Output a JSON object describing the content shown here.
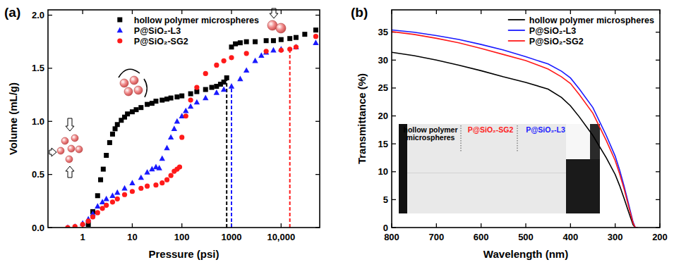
{
  "chart_data": [
    {
      "type": "scatter",
      "title": "(a)",
      "x_label": "Pressure (psi)",
      "y_label": "Volume (mL/g)",
      "log": "x",
      "grid": false,
      "legend": "upper center",
      "xlim": [
        0.2,
        60000
      ],
      "ylim": [
        0,
        2.05
      ],
      "xticks": [
        1,
        10,
        100,
        1000,
        {
          "value": 10000,
          "label": "10,000"
        }
      ],
      "yticks": [
        {
          "value": 0,
          "label": "0.0"
        },
        {
          "value": 0.5,
          "label": "0.5"
        },
        {
          "value": 1,
          "label": "1.0"
        },
        {
          "value": 1.5,
          "label": "1.5"
        },
        {
          "value": 2,
          "label": "2.0"
        }
      ],
      "series": [
        {
          "name": "hollow polymer microspheres",
          "color": "#000000",
          "marker": "square",
          "x": [
            1.3,
            1.6,
            2,
            2.3,
            2.6,
            3,
            3.5,
            4,
            4.5,
            5,
            6,
            7,
            8,
            10,
            12,
            15,
            20,
            25,
            30,
            40,
            50,
            60,
            80,
            100,
            150,
            200,
            300,
            400,
            500,
            600,
            700,
            800,
            1000,
            1200,
            1500,
            2000,
            3000,
            5000,
            7000,
            10000,
            15000,
            20000,
            30000,
            50000
          ],
          "values": [
            0.03,
            0.15,
            0.3,
            0.45,
            0.55,
            0.68,
            0.8,
            0.88,
            0.93,
            0.97,
            1.01,
            1.04,
            1.07,
            1.09,
            1.11,
            1.13,
            1.16,
            1.17,
            1.19,
            1.2,
            1.21,
            1.22,
            1.23,
            1.24,
            1.26,
            1.28,
            1.3,
            1.32,
            1.33,
            1.35,
            1.37,
            1.41,
            1.7,
            1.73,
            1.74,
            1.75,
            1.75,
            1.76,
            1.76,
            1.77,
            1.78,
            1.79,
            1.82,
            1.86
          ]
        },
        {
          "name": "P@SiO₂-L3",
          "color": "#1a1aff",
          "marker": "triangle",
          "x": [
            0.5,
            0.7,
            1,
            1.3,
            1.6,
            2,
            2.5,
            3,
            4,
            5,
            7,
            10,
            15,
            20,
            25,
            30,
            35,
            40,
            50,
            60,
            70,
            80,
            100,
            120,
            150,
            200,
            300,
            500,
            700,
            1000,
            1500,
            2000,
            3000,
            4000,
            5000,
            7000,
            10000,
            20000,
            50000
          ],
          "values": [
            0,
            0.01,
            0.04,
            0.08,
            0.13,
            0.2,
            0.24,
            0.27,
            0.3,
            0.33,
            0.37,
            0.42,
            0.47,
            0.52,
            0.55,
            0.57,
            0.56,
            0.65,
            0.75,
            0.85,
            0.93,
            1.0,
            1.05,
            1.1,
            1.14,
            1.18,
            1.22,
            1.27,
            1.3,
            1.33,
            1.4,
            1.48,
            1.57,
            1.62,
            1.65,
            1.67,
            1.68,
            1.7,
            1.74
          ]
        },
        {
          "name": "P@SiO₂-SG2",
          "color": "#ff1a1a",
          "marker": "circle",
          "x": [
            0.5,
            0.7,
            1,
            1.3,
            1.6,
            2,
            2.5,
            3,
            4,
            5,
            7,
            10,
            15,
            20,
            30,
            40,
            50,
            60,
            70,
            80,
            90,
            100,
            120,
            150,
            200,
            300,
            500,
            700,
            1000,
            2000,
            5000,
            10000,
            15000,
            20000,
            50000
          ],
          "values": [
            0,
            0.01,
            0.03,
            0.06,
            0.1,
            0.14,
            0.18,
            0.21,
            0.24,
            0.27,
            0.31,
            0.34,
            0.37,
            0.39,
            0.4,
            0.42,
            0.45,
            0.49,
            0.53,
            0.55,
            0.57,
            0.85,
            1.05,
            1.2,
            1.32,
            1.45,
            1.53,
            1.57,
            1.6,
            1.64,
            1.66,
            1.67,
            1.68,
            1.7,
            1.8
          ]
        }
      ],
      "reference_lines": [
        {
          "x": 800,
          "y": 1.41,
          "color": "#000000",
          "line_style": "dashed"
        },
        {
          "x": 1000,
          "y": 1.33,
          "color": "#1a1aff",
          "line_style": "dashed"
        },
        {
          "x": 15000,
          "y": 1.68,
          "color": "#ff1a1a",
          "line_style": "dashed"
        }
      ]
    },
    {
      "type": "line",
      "title": "(b)",
      "x_label": "Wavelength (nm)",
      "y_label": "Transmittance (%)",
      "grid": false,
      "legend": "upper right",
      "xlim": [
        800,
        200
      ],
      "ylim": [
        0,
        39
      ],
      "xticks": [
        800,
        700,
        600,
        500,
        400,
        300,
        200
      ],
      "yticks": [
        0,
        5,
        10,
        15,
        20,
        25,
        30,
        35
      ],
      "x": [
        800,
        750,
        700,
        650,
        600,
        550,
        500,
        450,
        420,
        400,
        380,
        350,
        320,
        300,
        290,
        280,
        270,
        260,
        255,
        250
      ],
      "series": [
        {
          "name": "hollow polymer microspheres",
          "color": "#000000",
          "line_style": "solid",
          "values": [
            31.4,
            30.8,
            30.0,
            29.1,
            28.1,
            27.0,
            26.0,
            24.8,
            23.3,
            21.8,
            19.8,
            16.5,
            12.5,
            9.5,
            7.5,
            5.2,
            2.8,
            0.5,
            0,
            0
          ]
        },
        {
          "name": "P@SiO₂-L3",
          "color": "#1a1aff",
          "line_style": "solid",
          "values": [
            35.4,
            35.0,
            34.4,
            33.7,
            32.8,
            31.8,
            30.6,
            29.3,
            28.0,
            26.8,
            24.8,
            21.5,
            16.5,
            12.8,
            10.3,
            7.4,
            4.2,
            1.0,
            0,
            0
          ]
        },
        {
          "name": "P@SiO₂-SG2",
          "color": "#ff1a1a",
          "line_style": "solid",
          "values": [
            35.1,
            34.6,
            33.9,
            33.1,
            32.1,
            31.0,
            29.9,
            28.4,
            27.0,
            25.8,
            23.8,
            20.5,
            15.6,
            12.0,
            9.6,
            6.9,
            3.8,
            0.8,
            0,
            0
          ]
        }
      ],
      "inset": [
        {
          "lines": [
            "hollow polymer",
            "microspheres"
          ],
          "color": "#000000"
        },
        {
          "lines": [
            "P@SiO₂-SG2"
          ],
          "color": "#ff1a1a"
        },
        {
          "lines": [
            "P@SiO₂-L3"
          ],
          "color": "#1a1aff"
        }
      ]
    }
  ]
}
